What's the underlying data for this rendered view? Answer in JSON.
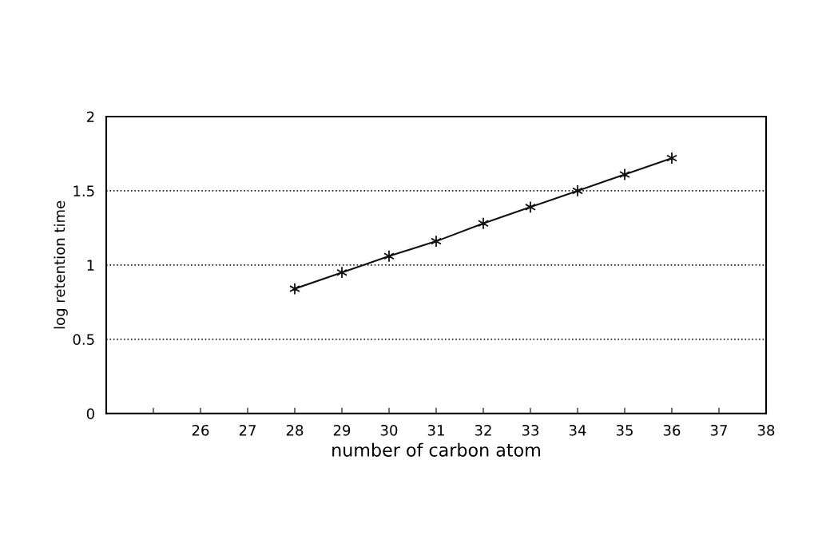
{
  "chart_data": {
    "type": "line",
    "xlabel": "number of carbon atom",
    "ylabel": "log retention time",
    "x": [
      28,
      29,
      30,
      31,
      32,
      33,
      34,
      35,
      36
    ],
    "series": [
      {
        "color": "#111111",
        "values": [
          0.84,
          0.95,
          1.06,
          1.16,
          1.28,
          1.39,
          1.5,
          1.61,
          1.72
        ]
      }
    ],
    "xlim": [
      24,
      38
    ],
    "xticks": [
      {
        "value": 25,
        "label": null
      },
      26,
      27,
      28,
      29,
      30,
      31,
      32,
      33,
      34,
      35,
      36,
      37,
      38
    ],
    "ylim": [
      0,
      2
    ],
    "yticks": [
      0,
      0.5,
      1,
      1.5,
      2
    ],
    "grid": "y",
    "marker": "cross",
    "line_style": "solid",
    "legend": false
  }
}
